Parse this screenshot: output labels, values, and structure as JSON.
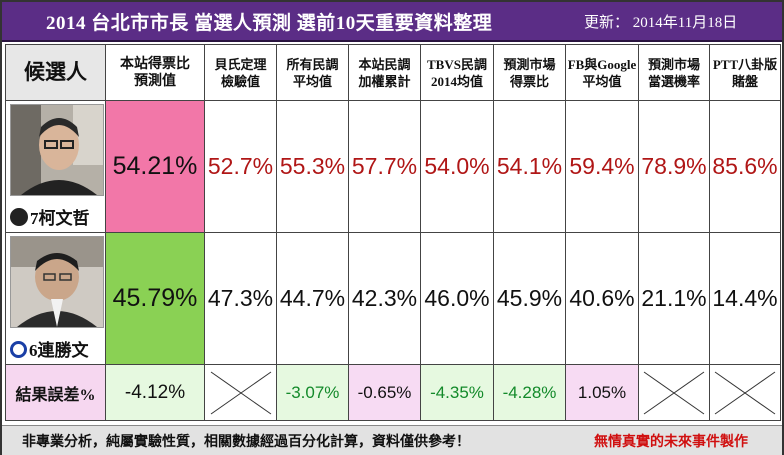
{
  "header": {
    "title": "2014 台北市市長 當選人預測 選前10天重要資料整理",
    "updated": "更新： 2014年11月18日"
  },
  "columns": {
    "candidate": "候選人",
    "site_prediction": "本站得票比\n預測值",
    "c1": "貝氏定理\n檢驗值",
    "c2": "所有民調\n平均值",
    "c3": "本站民調\n加權累計",
    "c4": "TBVS民調\n2014均值",
    "c5": "預測市場\n得票比",
    "c6": "FB與Google\n平均值",
    "c7": "預測市場\n當選機率",
    "c8": "PTT八卦版\n賭盤"
  },
  "candidates": [
    {
      "name": "7柯文哲",
      "site_prediction": "54.21%",
      "values": [
        "52.7%",
        "55.3%",
        "57.7%",
        "54.0%",
        "54.1%",
        "59.4%",
        "78.9%",
        "85.6%"
      ]
    },
    {
      "name": "6連勝文",
      "site_prediction": "45.79%",
      "values": [
        "47.3%",
        "44.7%",
        "42.3%",
        "46.0%",
        "45.9%",
        "40.6%",
        "21.1%",
        "14.4%"
      ]
    }
  ],
  "error_row": {
    "label": "結果誤差%",
    "site": "-4.12%",
    "values": [
      "",
      "-3.07%",
      "-0.65%",
      "-4.35%",
      "-4.28%",
      "1.05%",
      "",
      ""
    ]
  },
  "footer": {
    "note": "非專業分析，純屬實驗性質，相關數據經過百分化計算，資料僅供參考！",
    "credit": "無情真實的未來事件製作"
  },
  "colors": {
    "title_bg": "#5b2d86",
    "winner_highlight": "#f277a8",
    "loser_highlight": "#8ad154",
    "winner_text": "#b01616",
    "negative_diff": "#138a2a",
    "credit_text": "#d01010"
  }
}
